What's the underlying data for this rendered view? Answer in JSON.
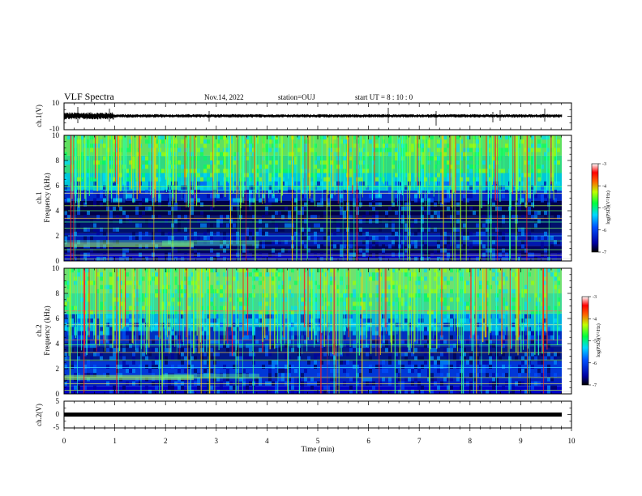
{
  "header": {
    "title": "VLF Spectra",
    "date": "Nov.14, 2022",
    "station": "station=OUJ",
    "start_ut": "start  UT =   8  : 10 : 0"
  },
  "chart_data": [
    {
      "type": "line",
      "ylabel": "ch.1(V)",
      "ylim": [
        -10,
        10
      ],
      "yticks": [
        "10",
        "-10"
      ],
      "xlim": [
        0,
        10
      ]
    },
    {
      "type": "heatmap",
      "ylabel": "ch.1\nFrequency  (kHz)",
      "ylabel_lines": [
        "ch.1",
        "Frequency  (kHz)"
      ],
      "ylim": [
        0,
        10
      ],
      "yticks": [
        "0",
        "2",
        "4",
        "6",
        "8",
        "10"
      ],
      "xlim": [
        0,
        10
      ],
      "colorbar": {
        "label": "log(PSD)(V²/Hz)",
        "range": [
          -7,
          -3
        ],
        "ticks": [
          "-3",
          "-4",
          "-5",
          "-6",
          "-7"
        ]
      }
    },
    {
      "type": "heatmap",
      "ylabel_lines": [
        "ch.2",
        "Frequency  (kHz)"
      ],
      "ylim": [
        0,
        10
      ],
      "yticks": [
        "0",
        "2",
        "4",
        "6",
        "8",
        "10"
      ],
      "xlim": [
        0,
        10
      ],
      "colorbar": {
        "label": "log(PSD)(V²/Hz)",
        "range": [
          -7,
          -3
        ],
        "ticks": [
          "-3",
          "-4",
          "-5",
          "-6",
          "-7"
        ]
      }
    },
    {
      "type": "line",
      "ylabel": "ch.2(V)",
      "ylim": [
        -5,
        5
      ],
      "yticks": [
        "5",
        "0",
        "-5"
      ],
      "xlim": [
        0,
        10
      ],
      "xlabel": "Time  (min)",
      "xticks": [
        "0",
        "1",
        "2",
        "3",
        "4",
        "5",
        "6",
        "7",
        "8",
        "9",
        "10"
      ]
    }
  ]
}
